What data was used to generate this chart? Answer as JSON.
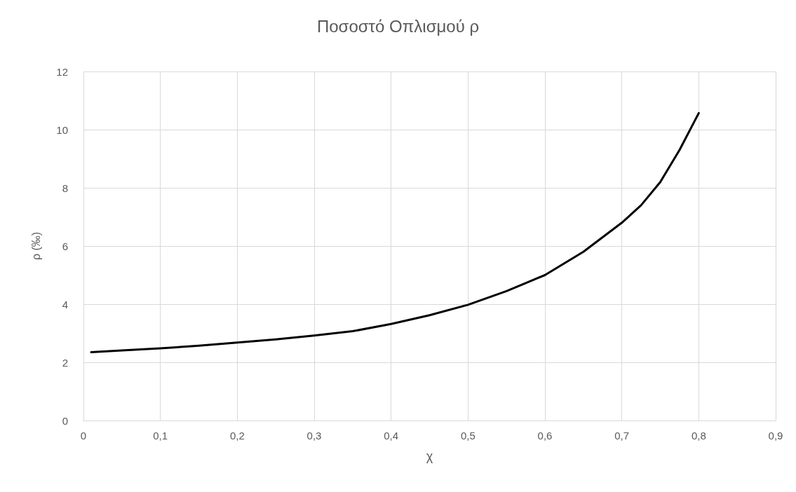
{
  "chart_data": {
    "type": "line",
    "title": "Ποσοστό Οπλισμού ρ",
    "xlabel": "χ",
    "ylabel": "ρ (‰)",
    "x": [
      0.01,
      0.05,
      0.1,
      0.15,
      0.2,
      0.25,
      0.3,
      0.35,
      0.4,
      0.45,
      0.5,
      0.55,
      0.6,
      0.65,
      0.7,
      0.725,
      0.75,
      0.775,
      0.8
    ],
    "series": [
      {
        "color": "#000000",
        "values": [
          2.35,
          2.41,
          2.48,
          2.57,
          2.68,
          2.79,
          2.92,
          3.07,
          3.32,
          3.62,
          3.98,
          4.45,
          5.0,
          5.8,
          6.8,
          7.4,
          8.2,
          9.3,
          10.57
        ]
      }
    ],
    "xlim": [
      0,
      0.9
    ],
    "xticks": [
      0,
      {
        "value": 0.1,
        "label": "0,1"
      },
      {
        "value": 0.2,
        "label": "0,2"
      },
      {
        "value": 0.3,
        "label": "0,3"
      },
      {
        "value": 0.4,
        "label": "0,4"
      },
      {
        "value": 0.5,
        "label": "0,5"
      },
      {
        "value": 0.6,
        "label": "0,6"
      },
      {
        "value": 0.7,
        "label": "0,7"
      },
      {
        "value": 0.8,
        "label": "0,8"
      },
      {
        "value": 0.9,
        "label": "0,9"
      }
    ],
    "ylim": [
      0,
      12
    ],
    "yticks": [
      0,
      2,
      4,
      6,
      8,
      10,
      12
    ],
    "grid": true,
    "marker": "none",
    "line_style": "solid"
  }
}
